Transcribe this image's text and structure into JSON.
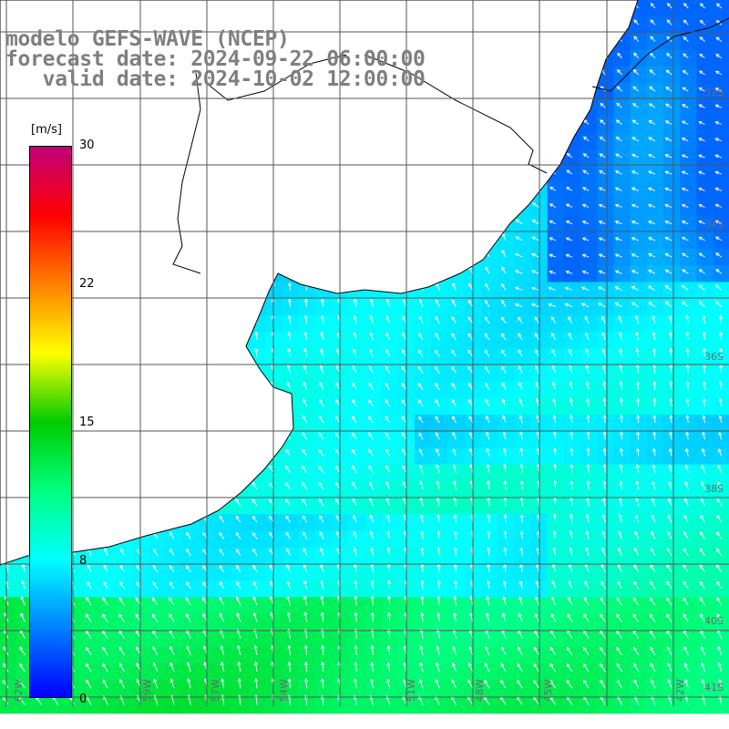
{
  "title_lines": [
    "modelo GEFS-WAVE (NCEP)",
    "forecast date: 2024-09-22 06:00:00",
    "   valid date: 2024-10-02 12:00:00"
  ],
  "colorbar": {
    "unit": "[m/s]",
    "ticks": [
      "30",
      "22",
      "15",
      "8",
      "0"
    ],
    "tick_values": [
      30,
      22,
      15,
      8,
      0
    ],
    "min": 0,
    "max": 30,
    "stops": [
      "#0000ff",
      "#0080ff",
      "#00ffff",
      "#00ff80",
      "#00cc00",
      "#ffff00",
      "#ff8000",
      "#ff0000",
      "#c0007a"
    ]
  },
  "lat_labels": [
    "32S",
    "34S",
    "36S",
    "38S",
    "40S",
    "41S"
  ],
  "lon_labels": [
    "62W",
    "59W",
    "57W",
    "54W",
    "51W",
    "48W",
    "45W",
    "42W"
  ],
  "field": {
    "description_colors": {
      "coastal_low": "#1040f0",
      "mid": "#20e8f0",
      "high": "#40ff60"
    }
  }
}
